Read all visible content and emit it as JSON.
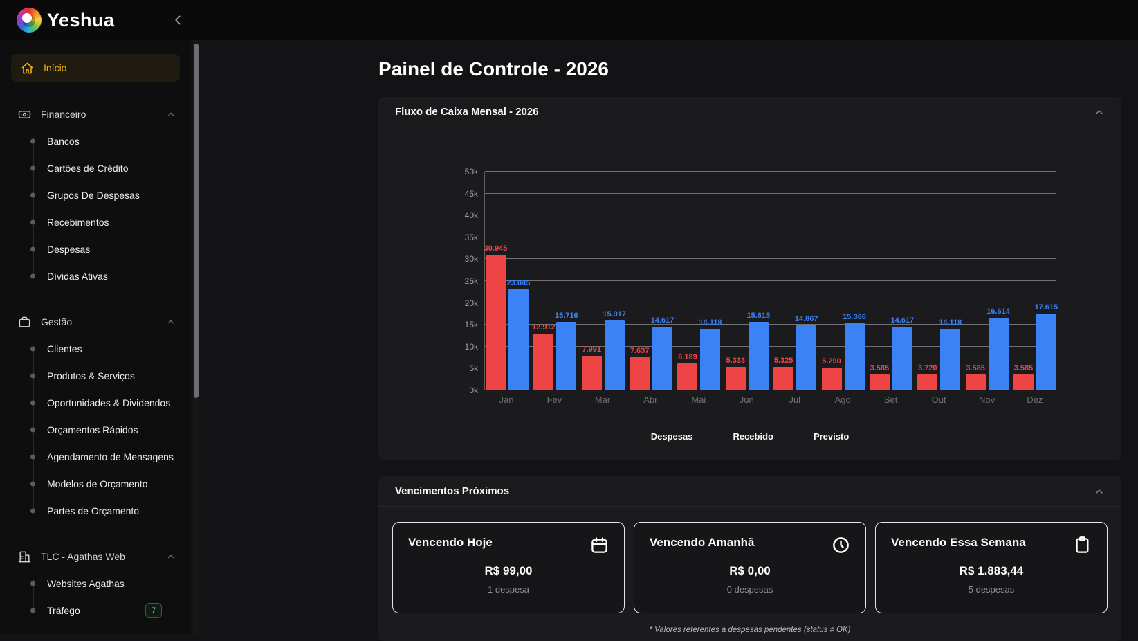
{
  "topbar": {
    "brand": "Yeshua"
  },
  "sidebar": {
    "home": {
      "label": "Início"
    },
    "sections": [
      {
        "label": "Financeiro",
        "icon": "banknote-icon",
        "items": [
          {
            "label": "Bancos"
          },
          {
            "label": "Cartões de Crédito"
          },
          {
            "label": "Grupos De Despesas"
          },
          {
            "label": "Recebimentos"
          },
          {
            "label": "Despesas"
          },
          {
            "label": "Dívidas Ativas"
          }
        ]
      },
      {
        "label": "Gestão",
        "icon": "briefcase-icon",
        "items": [
          {
            "label": "Clientes"
          },
          {
            "label": "Produtos & Serviços"
          },
          {
            "label": "Oportunidades & Dividendos"
          },
          {
            "label": "Orçamentos Rápidos"
          },
          {
            "label": "Agendamento de Mensagens"
          },
          {
            "label": "Modelos de Orçamento"
          },
          {
            "label": "Partes de Orçamento"
          }
        ]
      },
      {
        "label": "TLC - Agathas Web",
        "icon": "building-icon",
        "items": [
          {
            "label": "Websites Agathas"
          },
          {
            "label": "Tráfego",
            "badge": "7"
          }
        ]
      }
    ]
  },
  "main": {
    "title": "Painel de Controle - 2026",
    "chart_card": {
      "title": "Fluxo de Caixa Mensal - 2026"
    },
    "vencimentos_card": {
      "title": "Vencimentos Próximos",
      "cards": [
        {
          "title": "Vencendo Hoje",
          "icon": "calendar-icon",
          "amount": "R$ 99,00",
          "subtitle": "1 despesa"
        },
        {
          "title": "Vencendo Amanhã",
          "icon": "clock-icon",
          "amount": "R$ 0,00",
          "subtitle": "0 despesas"
        },
        {
          "title": "Vencendo Essa Semana",
          "icon": "clipboard-icon",
          "amount": "R$ 1.883,44",
          "subtitle": "5 despesas"
        }
      ],
      "footnote": "* Valores referentes a despesas pendentes (status ≠ OK)"
    }
  },
  "chart_data": {
    "type": "bar",
    "title": "Fluxo de Caixa Mensal - 2026",
    "categories": [
      "Jan",
      "Fev",
      "Mar",
      "Abr",
      "Mai",
      "Jun",
      "Jul",
      "Ago",
      "Set",
      "Out",
      "Nov",
      "Dez"
    ],
    "series": [
      {
        "name": "Despesas",
        "color": "#ef4444",
        "values": [
          30945,
          12912,
          7991,
          7637,
          6189,
          5333,
          5325,
          5290,
          3585,
          3720,
          3585,
          3585
        ]
      },
      {
        "name": "Previsto",
        "color": "#3b82f6",
        "values": [
          23045,
          15716,
          15917,
          14617,
          14118,
          15615,
          14867,
          15366,
          14617,
          14118,
          16614,
          17615
        ]
      }
    ],
    "legend": [
      "Despesas",
      "Recebido",
      "Previsto"
    ],
    "ylim": [
      0,
      50000
    ],
    "ytick_step": 5000,
    "ytick_labels": [
      "0k",
      "5k",
      "10k",
      "15k",
      "20k",
      "25k",
      "30k",
      "35k",
      "40k",
      "45k",
      "50k"
    ],
    "grid": true,
    "legend_position": "bottom"
  },
  "colors": {
    "accent_yellow": "#eab308",
    "bar_red": "#ef4444",
    "bar_blue": "#3b82f6",
    "badge_green": "#4ade80",
    "card_bg": "#1b1b1d",
    "page_bg": "#131315"
  }
}
